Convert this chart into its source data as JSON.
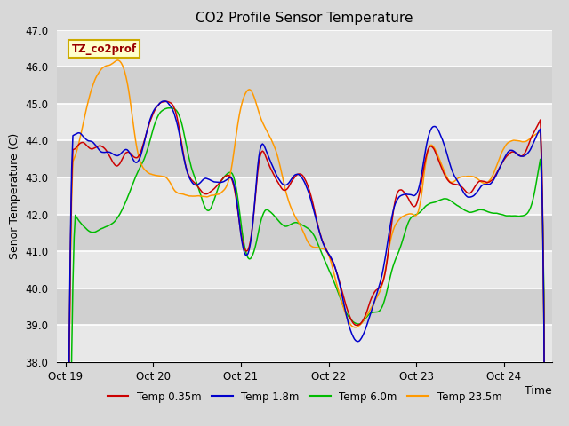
{
  "title": "CO2 Profile Sensor Temperature",
  "ylabel": "Senor Temperature (C)",
  "xlabel": "Time",
  "ylim": [
    38.0,
    47.0
  ],
  "yticks": [
    38.0,
    39.0,
    40.0,
    41.0,
    42.0,
    43.0,
    44.0,
    45.0,
    46.0,
    47.0
  ],
  "xtick_positions": [
    0,
    1,
    2,
    3,
    4,
    5
  ],
  "xtick_labels": [
    "Oct 19",
    "Oct 20",
    "Oct 21",
    "Oct 22",
    "Oct 23",
    "Oct 24"
  ],
  "colors": {
    "Temp 0.35m": "#cc0000",
    "Temp 1.8m": "#0000cc",
    "Temp 6.0m": "#00bb00",
    "Temp 23.5m": "#ff9900"
  },
  "legend_label": "TZ_co2prof",
  "legend_box_facecolor": "#ffffcc",
  "legend_box_edgecolor": "#ccaa00",
  "bg_color": "#d8d8d8",
  "plot_bg_color_light": "#e8e8e8",
  "plot_bg_color_dark": "#d0d0d0",
  "title_fontsize": 11,
  "axis_fontsize": 9,
  "tick_fontsize": 8.5,
  "line_width": 1.1
}
